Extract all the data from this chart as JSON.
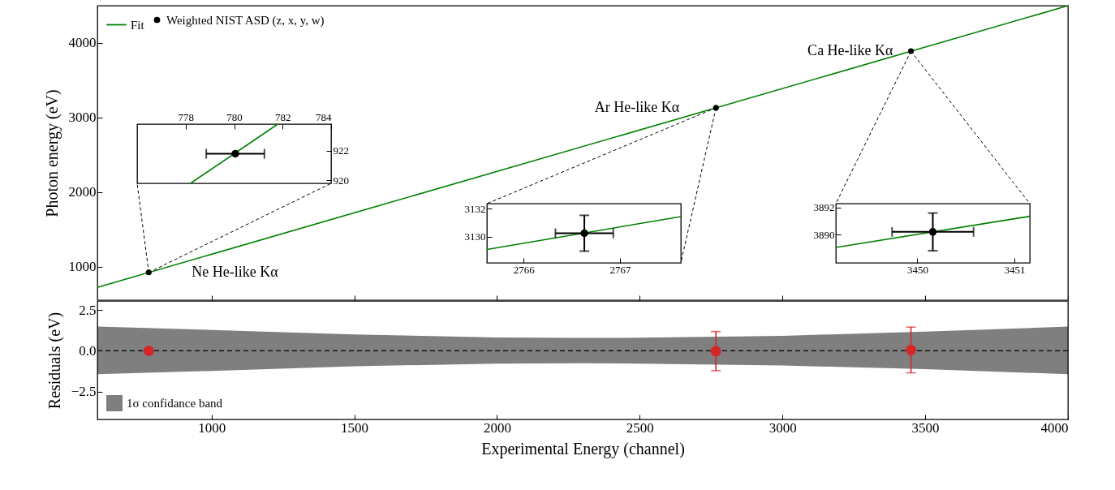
{
  "chart_data": [
    {
      "type": "line",
      "ylabel": "Photon energy (eV)",
      "xlim": [
        600,
        4000
      ],
      "ylim": [
        550,
        4500
      ],
      "xticks": [
        1000,
        1500,
        2000,
        2500,
        3000,
        3500,
        4000
      ],
      "yticks": [
        1000,
        2000,
        3000,
        4000
      ],
      "tick_labels": "y",
      "legend": "top left",
      "series": [
        {
          "name": "Fit",
          "type": "line",
          "color": "#008000",
          "x": [
            600,
            4000
          ],
          "values": [
            722,
            4500
          ]
        },
        {
          "name": "Weighted NIST ASD (z, x, y, w)",
          "type": "scatter",
          "color": "#000000",
          "x": [
            780,
            2767,
            3450
          ],
          "values": [
            922,
            3130,
            3890
          ]
        }
      ],
      "annotations": [
        {
          "text": "Ne He-like Kα",
          "x": 780,
          "y": 922
        },
        {
          "text": "Ar He-like Kα",
          "x": 2767,
          "y": 3130
        },
        {
          "text": "Ca He-like Kα",
          "x": 3450,
          "y": 3890
        }
      ]
    },
    {
      "type": "scatter",
      "xlabel": "Experimental Energy (channel)",
      "ylabel": "Residuals (eV)",
      "xlim": [
        600,
        4000
      ],
      "ylim": [
        -4.2,
        3.05
      ],
      "xticks": [
        1000,
        1500,
        2000,
        2500,
        3000,
        3500,
        4000
      ],
      "yticks": [
        {
          "value": -2.5,
          "label": "−2.5"
        },
        {
          "value": 0,
          "label": "0.0"
        },
        2.5
      ],
      "legend": "bottom left",
      "series": [
        {
          "name": "1σ confidance band",
          "type": "line",
          "color": "#000000",
          "line_style": "dashed",
          "x": [
            600,
            1000,
            1500,
            2000,
            2300,
            2500,
            3000,
            3500,
            4000
          ],
          "values": [
            0,
            0,
            0,
            0,
            0,
            0,
            0,
            0,
            0
          ],
          "lower": [
            -1.43,
            -1.23,
            -0.95,
            -0.78,
            -0.76,
            -0.78,
            -0.9,
            -1.12,
            -1.43
          ],
          "upper": [
            1.48,
            1.28,
            1.0,
            0.82,
            0.79,
            0.8,
            0.92,
            1.17,
            1.48
          ]
        },
        {
          "color": "#d62728",
          "x": [
            780.05,
            2766.63,
            3450.16
          ],
          "values": [
            0,
            -0.02,
            0.05
          ],
          "errors": [
            null,
            1.2,
            1.4
          ]
        }
      ]
    },
    {
      "type": "scatter",
      "xlim": [
        776,
        784
      ],
      "ylim": [
        919.8,
        923.8
      ],
      "xticks": [
        778,
        780,
        782,
        784
      ],
      "yticks": [
        920,
        922
      ],
      "series": [
        {
          "type": "line",
          "color": "#008000",
          "x": [
            778.2,
            781.8
          ],
          "values": [
            919.8,
            923.8
          ]
        },
        {
          "type": "scatter",
          "color": "#000000",
          "x": [
            780.05
          ],
          "values": [
            921.8
          ],
          "xerrors": [
            1.2
          ]
        }
      ]
    },
    {
      "type": "scatter",
      "xlim": [
        2765.62,
        2767.63
      ],
      "ylim": [
        3128.15,
        3132.35
      ],
      "xticks": [
        2766,
        2767
      ],
      "yticks": [
        3130,
        3132
      ],
      "series": [
        {
          "type": "line",
          "color": "#008000",
          "x": [
            2765.62,
            2767.63
          ],
          "values": [
            3129.1,
            3131.43
          ]
        },
        {
          "type": "scatter",
          "color": "#000000",
          "x": [
            2766.63
          ],
          "values": [
            3130.25
          ],
          "xerrors": [
            0.3
          ],
          "errors": [
            1.27
          ]
        }
      ]
    },
    {
      "type": "scatter",
      "xlim": [
        3449.16,
        3451.16
      ],
      "ylim": [
        3887.9,
        3892.3
      ],
      "xticks": [
        3450,
        3451
      ],
      "yticks": [
        3890,
        3892
      ],
      "series": [
        {
          "type": "line",
          "color": "#008000",
          "x": [
            3449.16,
            3451.16
          ],
          "values": [
            3889.05,
            3891.36
          ]
        },
        {
          "type": "scatter",
          "color": "#000000",
          "x": [
            3450.16
          ],
          "values": [
            3890.2
          ],
          "xerrors": [
            0.42
          ],
          "errors": [
            1.4
          ]
        }
      ]
    }
  ]
}
